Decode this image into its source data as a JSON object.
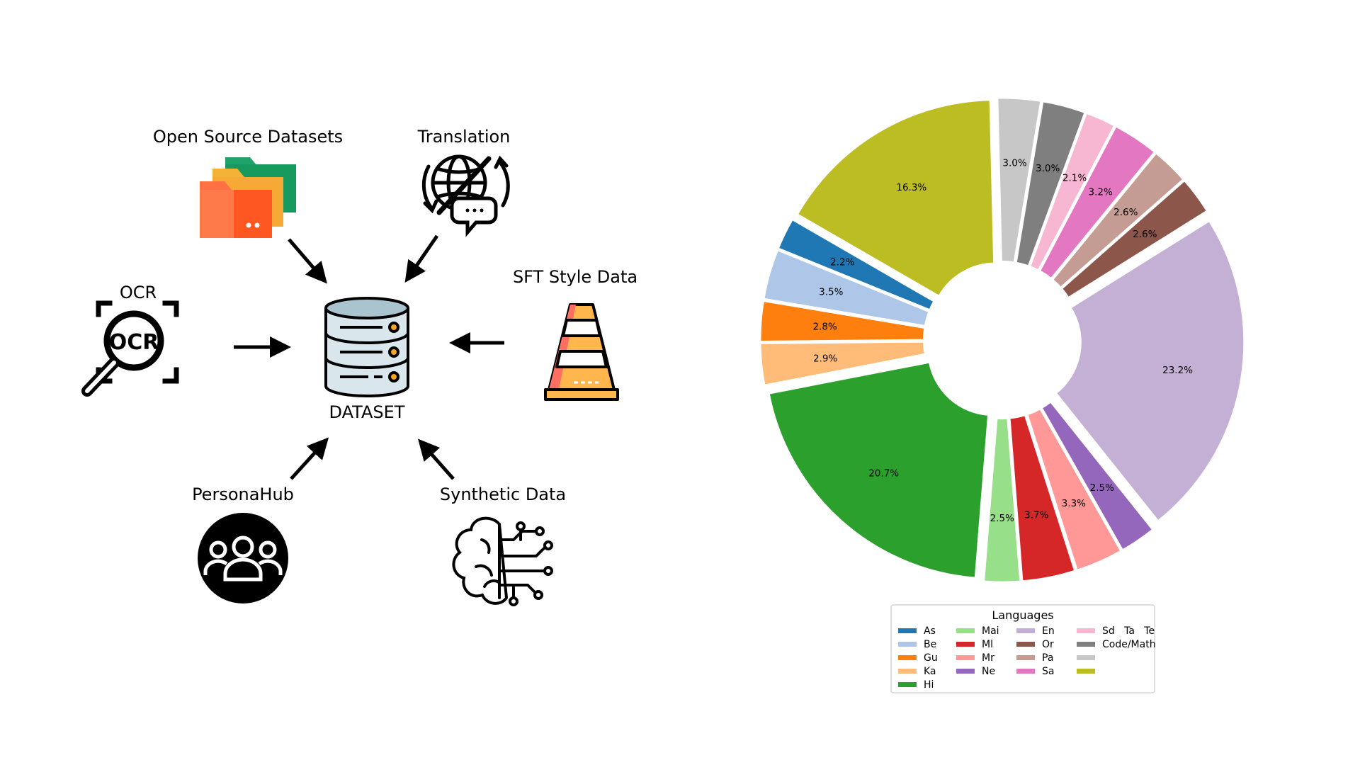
{
  "diagram": {
    "center_label": "DATASET",
    "sources": {
      "open_source": "Open Source Datasets",
      "translation": "Translation",
      "ocr": "OCR",
      "ocr_icon_text": "OCR",
      "sft": "SFT Style Data",
      "personahub": "PersonaHub",
      "synthetic": "Synthetic Data"
    },
    "colors": {
      "folder_back": "#1fa36b",
      "folder_mid": "#f5b335",
      "folder_front": "#ff7043",
      "db_fill": "#d9e6ec",
      "db_top": "#a9c3cf",
      "db_dot": "#f5a623",
      "cone_orange": "#ffb74d",
      "cone_red": "#ff6f61"
    }
  },
  "chart_data": {
    "type": "pie",
    "title": "",
    "legend_title": "Languages",
    "legend_placement": "bottom",
    "legend_columns": [
      [
        "As",
        "Be",
        "Gu",
        "Ka",
        "Hi"
      ],
      [
        "Mai",
        "Ml",
        "Mr",
        "Ne"
      ],
      [
        "En",
        "Or",
        "Pa",
        "Sa"
      ],
      [
        "Sd   Ta   Te",
        "Code/Math"
      ]
    ],
    "legend_swatches": [
      [
        "#1f77b4",
        "#aec7e8",
        "#ff7f0e",
        "#ffbb78",
        "#2ca02c"
      ],
      [
        "#98df8a",
        "#d62728",
        "#ff9896",
        "#9467bd"
      ],
      [
        "#c5b0d5",
        "#8c564b",
        "#c49c94",
        "#e377c2"
      ],
      [
        "#f7b6d2",
        "#7f7f7f",
        "#c7c7c7",
        "#bcbd22"
      ]
    ],
    "slices": [
      {
        "label": "As",
        "value": 2.2,
        "text": "2.2%",
        "color": "#1f77b4",
        "explode": 0.12
      },
      {
        "label": "Be",
        "value": 3.5,
        "text": "3.5%",
        "color": "#aec7e8",
        "explode": 0.12
      },
      {
        "label": "Gu",
        "value": 2.8,
        "text": "2.8%",
        "color": "#ff7f0e",
        "explode": 0.12
      },
      {
        "label": "Ka",
        "value": 2.9,
        "text": "2.9%",
        "color": "#ffbb78",
        "explode": 0.12
      },
      {
        "label": "Hi",
        "value": 20.7,
        "text": "20.7%",
        "color": "#2ca02c",
        "explode": 0.12
      },
      {
        "label": "Mai",
        "value": 2.5,
        "text": "2.5%",
        "color": "#98df8a",
        "explode": 0.12
      },
      {
        "label": "Ml",
        "value": 3.7,
        "text": "3.7%",
        "color": "#d62728",
        "explode": 0.12
      },
      {
        "label": "Mr",
        "value": 3.3,
        "text": "3.3%",
        "color": "#ff9896",
        "explode": 0.12
      },
      {
        "label": "Ne",
        "value": 2.5,
        "text": "2.5%",
        "color": "#9467bd",
        "explode": 0.12
      },
      {
        "label": "En",
        "value": 23.2,
        "text": "23.2%",
        "color": "#c5b0d5",
        "explode": 0.12
      },
      {
        "label": "Or",
        "value": 2.6,
        "text": "2.6%",
        "color": "#8c564b",
        "explode": 0.12
      },
      {
        "label": "Pa",
        "value": 2.6,
        "text": "2.6%",
        "color": "#c49c94",
        "explode": 0.12
      },
      {
        "label": "Sa",
        "value": 3.2,
        "text": "3.2%",
        "color": "#e377c2",
        "explode": 0.12
      },
      {
        "label": "Sd",
        "value": 2.1,
        "text": "2.1%",
        "color": "#f7b6d2",
        "explode": 0.12
      },
      {
        "label": "Ta",
        "value": 3.0,
        "text": "3.0%",
        "color": "#7f7f7f",
        "explode": 0.12
      },
      {
        "label": "Te",
        "value": 3.0,
        "text": "3.0%",
        "color": "#c7c7c7",
        "explode": 0.12
      },
      {
        "label": "Code/Math",
        "value": 16.3,
        "text": "16.3%",
        "color": "#bcbd22",
        "explode": 0.12
      }
    ]
  }
}
